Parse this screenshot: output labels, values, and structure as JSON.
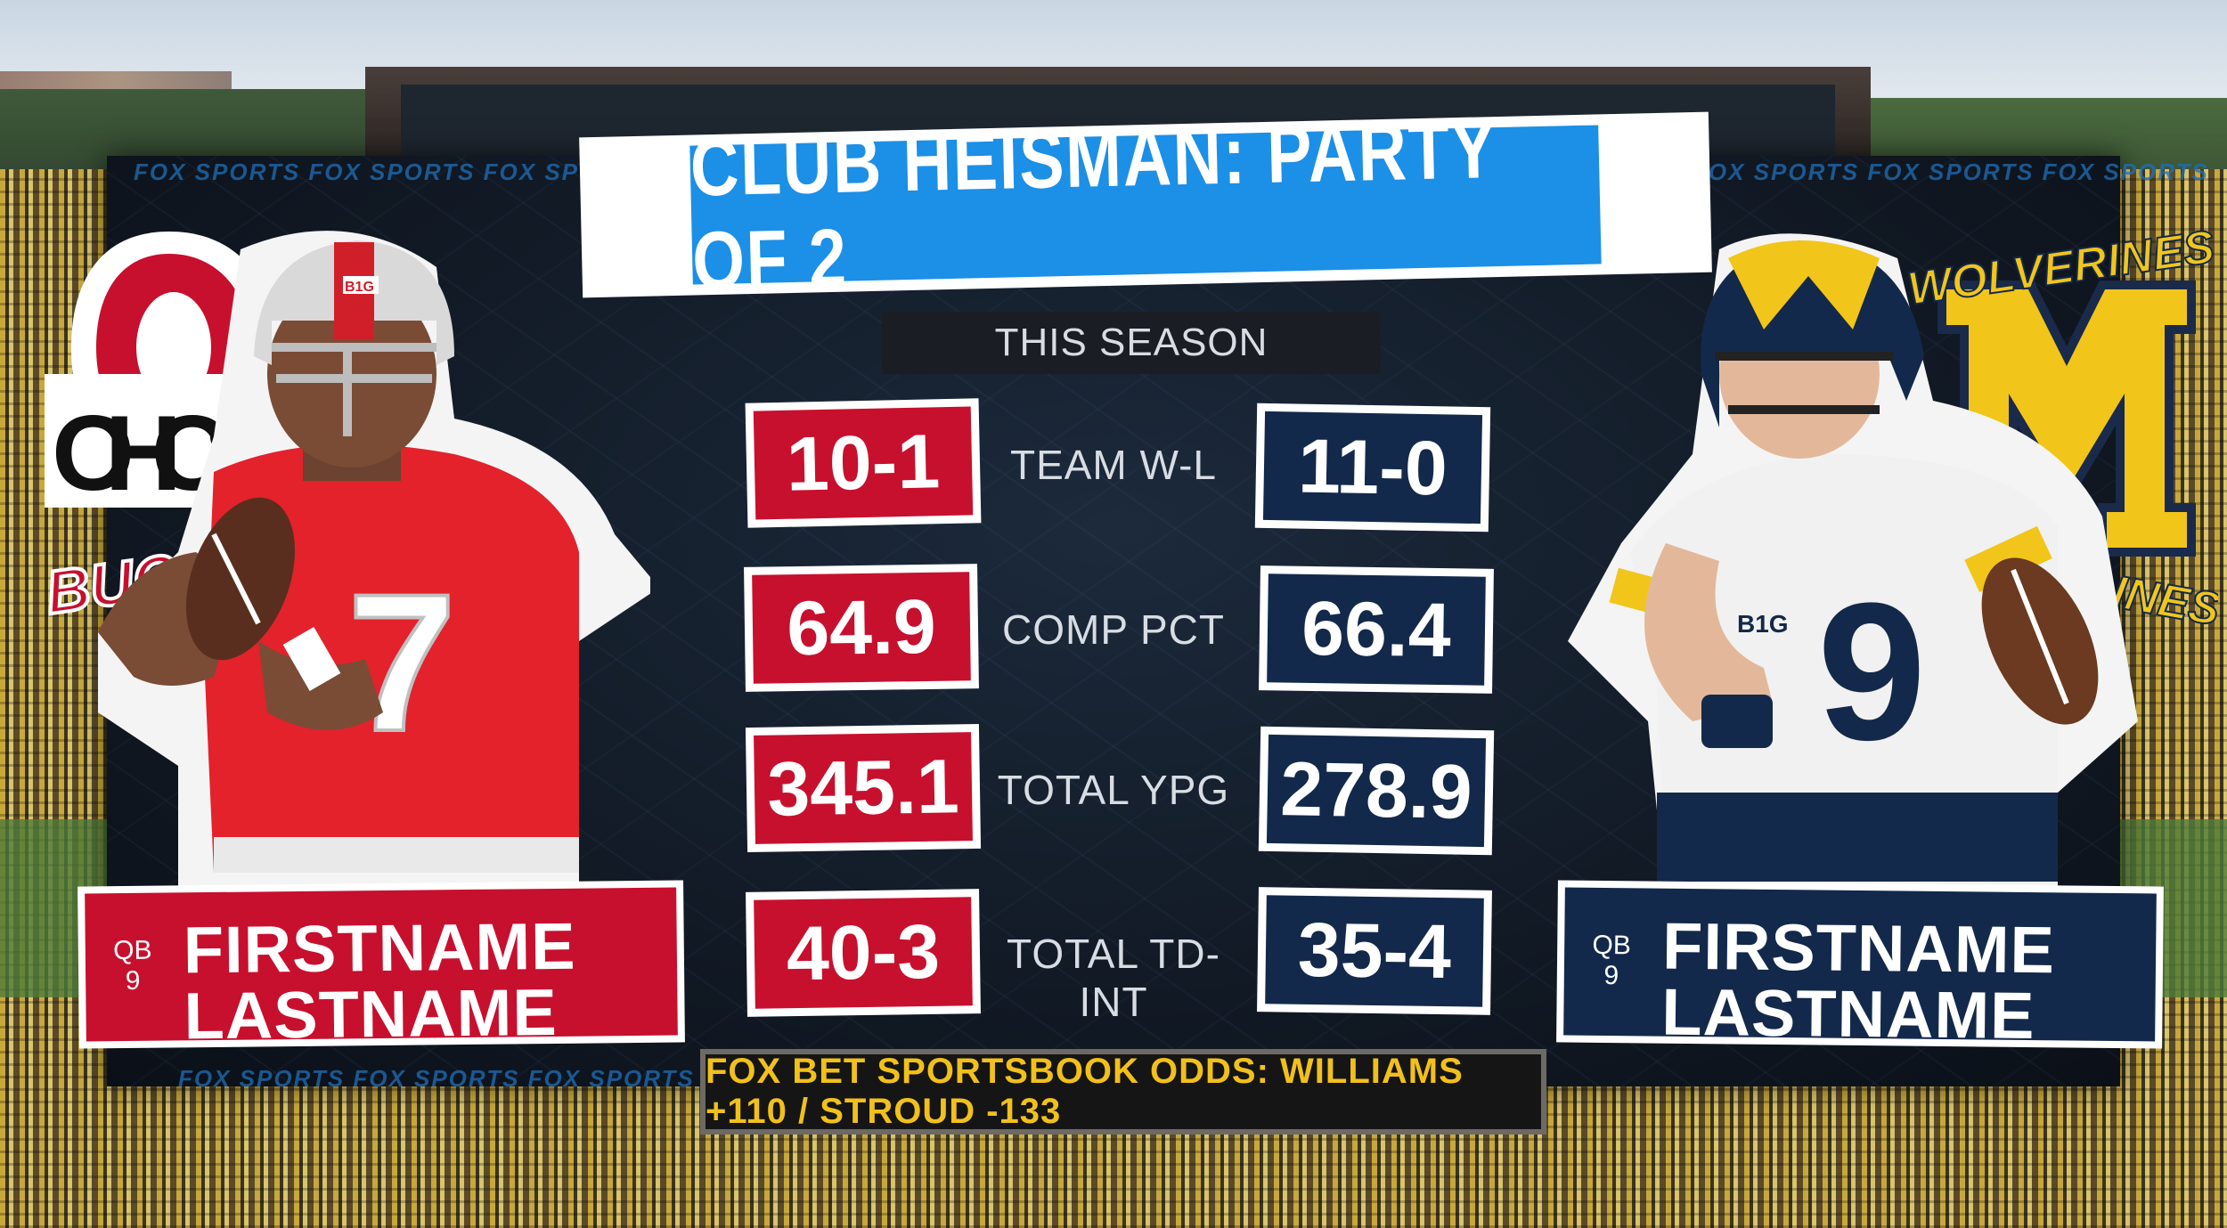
{
  "title": "CLUB HEISMAN: PARTY OF 2",
  "subtitle": "THIS SEASON",
  "watermark": "FOX SPORTS FOX SPORTS FOX SPORTS",
  "logos": {
    "left_text": "OHIO ST",
    "left_script": "BUCKEYES",
    "right_script": "WOLVERINES",
    "left_letter": "O",
    "right_letter": "M"
  },
  "colors": {
    "ohio_red": "#c7102e",
    "michigan_navy": "#13294b",
    "title_blue": "#1c8fe6",
    "odds_gold": "#f2c01b"
  },
  "stats": [
    {
      "label": "TEAM W-L",
      "left": "10-1",
      "right": "11-0"
    },
    {
      "label": "COMP PCT",
      "left": "64.9",
      "right": "66.4"
    },
    {
      "label": "TOTAL YPG",
      "left": "345.1",
      "right": "278.9"
    },
    {
      "label": "TOTAL TD-INT",
      "left": "40-3",
      "right": "35-4"
    }
  ],
  "players": {
    "left": {
      "position": "QB",
      "number": "9",
      "first": "FIRSTNAME",
      "last": "LASTNAME",
      "jersey": "7",
      "helmet_badge": "B1G"
    },
    "right": {
      "position": "QB",
      "number": "9",
      "first": "FIRSTNAME",
      "last": "LASTNAME",
      "jersey": "9",
      "chest_badge": "B1G"
    }
  },
  "odds": "FOX BET SPORTSBOOK ODDS: WILLIAMS +110 / STROUD -133"
}
